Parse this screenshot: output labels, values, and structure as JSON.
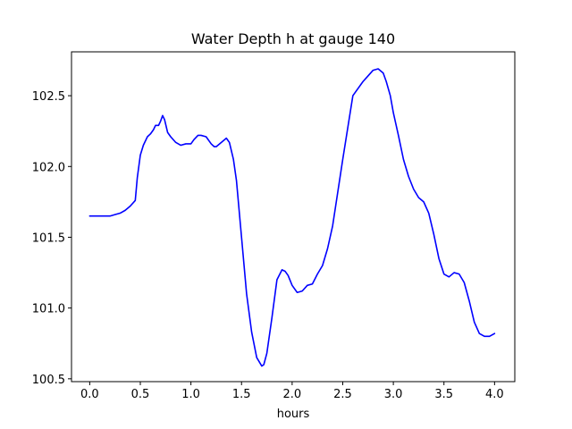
{
  "chart_data": {
    "type": "line",
    "title": "Water Depth h at gauge 140",
    "xlabel": "hours",
    "ylabel": "",
    "xlim": [
      -0.18,
      4.2
    ],
    "ylim": [
      100.48,
      102.81
    ],
    "xticks": [
      0.0,
      0.5,
      1.0,
      1.5,
      2.0,
      2.5,
      3.0,
      3.5,
      4.0
    ],
    "xtick_labels": [
      "0.0",
      "0.5",
      "1.0",
      "1.5",
      "2.0",
      "2.5",
      "3.0",
      "3.5",
      "4.0"
    ],
    "yticks": [
      100.5,
      101.0,
      101.5,
      102.0,
      102.5
    ],
    "ytick_labels": [
      "100.5",
      "101.0",
      "101.5",
      "102.0",
      "102.5"
    ],
    "grid": false,
    "series": [
      {
        "color": "#0000ff",
        "x": [
          0.0,
          0.1,
          0.2,
          0.3,
          0.35,
          0.4,
          0.45,
          0.47,
          0.5,
          0.53,
          0.57,
          0.6,
          0.63,
          0.65,
          0.68,
          0.7,
          0.72,
          0.74,
          0.77,
          0.8,
          0.85,
          0.9,
          0.95,
          1.0,
          1.03,
          1.07,
          1.1,
          1.15,
          1.2,
          1.23,
          1.25,
          1.3,
          1.35,
          1.38,
          1.42,
          1.45,
          1.5,
          1.55,
          1.6,
          1.65,
          1.7,
          1.72,
          1.75,
          1.8,
          1.85,
          1.9,
          1.93,
          1.96,
          2.0,
          2.05,
          2.1,
          2.15,
          2.2,
          2.25,
          2.3,
          2.35,
          2.4,
          2.5,
          2.6,
          2.7,
          2.75,
          2.8,
          2.85,
          2.9,
          2.93,
          2.97,
          3.0,
          3.05,
          3.1,
          3.15,
          3.2,
          3.25,
          3.3,
          3.35,
          3.4,
          3.45,
          3.5,
          3.55,
          3.6,
          3.65,
          3.7,
          3.75,
          3.8,
          3.85,
          3.9,
          3.95,
          4.0
        ],
        "y": [
          101.65,
          101.65,
          101.65,
          101.67,
          101.69,
          101.72,
          101.76,
          101.92,
          102.08,
          102.15,
          102.21,
          102.23,
          102.26,
          102.29,
          102.29,
          102.32,
          102.36,
          102.33,
          102.24,
          102.21,
          102.17,
          102.15,
          102.16,
          102.16,
          102.19,
          102.22,
          102.22,
          102.21,
          102.16,
          102.14,
          102.14,
          102.17,
          102.2,
          102.17,
          102.05,
          101.9,
          101.5,
          101.1,
          100.83,
          100.65,
          100.59,
          100.6,
          100.68,
          100.93,
          101.2,
          101.27,
          101.26,
          101.23,
          101.16,
          101.11,
          101.12,
          101.16,
          101.17,
          101.24,
          101.3,
          101.42,
          101.58,
          102.05,
          102.5,
          102.6,
          102.64,
          102.68,
          102.69,
          102.66,
          102.6,
          102.5,
          102.38,
          102.22,
          102.05,
          101.93,
          101.84,
          101.78,
          101.75,
          101.67,
          101.52,
          101.35,
          101.24,
          101.22,
          101.25,
          101.24,
          101.18,
          101.05,
          100.9,
          100.82,
          100.8,
          100.8,
          100.82
        ]
      }
    ]
  }
}
